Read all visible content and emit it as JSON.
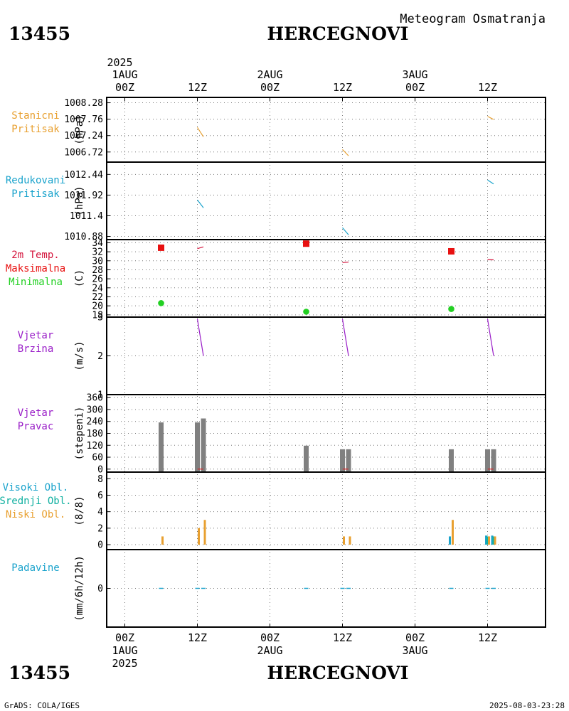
{
  "header": {
    "subtitle": "Meteogram Osmatranja",
    "station_id": "13455",
    "station_name": "HERCEGNOVI"
  },
  "footer": {
    "credit": "GrADS: COLA/IGES",
    "timestamp": "2025-08-03-23:28"
  },
  "time_axis": {
    "year": "2025",
    "top_ticks": [
      {
        "t": 0,
        "line1": "1AUG",
        "line2": "00Z",
        "year": "2025"
      },
      {
        "t": 12,
        "line1": "",
        "line2": "12Z"
      },
      {
        "t": 24,
        "line1": "2AUG",
        "line2": "00Z"
      },
      {
        "t": 36,
        "line1": "",
        "line2": "12Z"
      },
      {
        "t": 48,
        "line1": "3AUG",
        "line2": "00Z"
      },
      {
        "t": 60,
        "line1": "",
        "line2": "12Z"
      }
    ],
    "bottom_ticks": [
      {
        "t": 0,
        "line1": "00Z",
        "line2": "1AUG",
        "year": "2025"
      },
      {
        "t": 12,
        "line1": "12Z",
        "line2": ""
      },
      {
        "t": 24,
        "line1": "00Z",
        "line2": "2AUG"
      },
      {
        "t": 36,
        "line1": "12Z",
        "line2": ""
      },
      {
        "t": 48,
        "line1": "00Z",
        "line2": "3AUG"
      },
      {
        "t": 60,
        "line1": "12Z",
        "line2": ""
      }
    ]
  },
  "colors": {
    "orange": "#e8a030",
    "blue": "#1aa3cc",
    "red": "#e81010",
    "crimson": "#d4143c",
    "green": "#22d022",
    "purple": "#9a1ec8",
    "teal": "#10b0a0",
    "gray": "#808080"
  },
  "chart_data": [
    {
      "id": "station_pressure",
      "type": "line",
      "labels": [
        "Stanicni",
        "Pritisak"
      ],
      "label_colors": [
        "orange",
        "orange"
      ],
      "ylabel": "(hPa)",
      "yticks": [
        "1008.28",
        "1007.76",
        "1007.24",
        "1006.72"
      ],
      "ylim": [
        1006.4,
        1008.45
      ],
      "series": [
        {
          "name": "Stanicni Pritisak",
          "color": "orange",
          "segments": [
            [
              [
                12,
                1007.5
              ],
              [
                13,
                1007.2
              ]
            ],
            [
              [
                36,
                1006.8
              ],
              [
                37,
                1006.6
              ]
            ],
            [
              [
                60,
                1007.85
              ],
              [
                61,
                1007.75
              ]
            ]
          ]
        }
      ]
    },
    {
      "id": "reduced_pressure",
      "type": "line",
      "labels": [
        "Redukovani",
        "Pritisak"
      ],
      "label_colors": [
        "blue",
        "blue"
      ],
      "ylabel": "(hPa)",
      "yticks": [
        "1012.44",
        "1011.92",
        "1011.4",
        "1010.88"
      ],
      "ylim": [
        1010.8,
        1012.75
      ],
      "series": [
        {
          "name": "Redukovani Pritisak",
          "color": "blue",
          "segments": [
            [
              [
                12,
                1011.8
              ],
              [
                13,
                1011.6
              ]
            ],
            [
              [
                36,
                1011.1
              ],
              [
                37,
                1010.92
              ]
            ],
            [
              [
                60,
                1012.3
              ],
              [
                61,
                1012.2
              ]
            ]
          ]
        }
      ]
    },
    {
      "id": "temperature",
      "type": "line",
      "labels": [
        "2m Temp.",
        "Maksimalna",
        "Minimalna"
      ],
      "label_colors": [
        "crimson",
        "red",
        "green"
      ],
      "ylabel": "(C)",
      "yticks": [
        "34",
        "32",
        "30",
        "28",
        "26",
        "24",
        "22",
        "20",
        "18"
      ],
      "ytick_values": [
        34,
        32,
        30,
        28,
        26,
        24,
        22,
        20,
        18
      ],
      "ylim": [
        17.5,
        34.7
      ],
      "series": [
        {
          "name": "2m Temp.",
          "color": "crimson",
          "segments": [
            [
              [
                12,
                32.7
              ],
              [
                13,
                33.1
              ]
            ],
            [
              [
                36,
                29.6
              ],
              [
                37,
                29.7
              ]
            ],
            [
              [
                60,
                30.3
              ],
              [
                61,
                30.2
              ]
            ]
          ]
        }
      ],
      "markers": [
        {
          "name": "Maksimalna",
          "color": "red",
          "shape": "square",
          "points": [
            [
              6,
              32.9
            ],
            [
              30,
              33.8
            ],
            [
              54,
              32.1
            ]
          ]
        },
        {
          "name": "Minimalna",
          "color": "green",
          "shape": "circle",
          "points": [
            [
              6,
              20.6
            ],
            [
              30,
              18.7
            ],
            [
              54,
              19.3
            ]
          ]
        }
      ]
    },
    {
      "id": "wind_speed",
      "type": "line",
      "labels": [
        "Vjetar",
        "Brzina"
      ],
      "label_colors": [
        "purple",
        "purple"
      ],
      "ylabel": "(m/s)",
      "yticks": [
        "3",
        "2",
        "1"
      ],
      "ytick_values": [
        3,
        2,
        1
      ],
      "ylim": [
        1,
        3
      ],
      "series": [
        {
          "name": "Vjetar Brzina",
          "color": "purple",
          "segments": [
            [
              [
                12,
                2.95
              ],
              [
                13,
                2.0
              ]
            ],
            [
              [
                36,
                2.95
              ],
              [
                37,
                2.0
              ]
            ],
            [
              [
                60,
                2.95
              ],
              [
                61,
                2.0
              ]
            ]
          ]
        }
      ]
    },
    {
      "id": "wind_direction",
      "type": "bar",
      "labels": [
        "Vjetar",
        "Pravac"
      ],
      "label_colors": [
        "purple",
        "purple"
      ],
      "ylabel": "(stepeni)",
      "yticks": [
        "360",
        "300",
        "240",
        "180",
        "120",
        "60",
        "0"
      ],
      "ytick_values": [
        360,
        300,
        240,
        180,
        120,
        60,
        0
      ],
      "ylim": [
        -15,
        375
      ],
      "series": [
        {
          "name": "Vjetar Pravac",
          "color": "gray",
          "points": [
            [
              6,
              235
            ],
            [
              12,
              235
            ],
            [
              13,
              255
            ],
            [
              30,
              118
            ],
            [
              36,
              100
            ],
            [
              37,
              100
            ],
            [
              54,
              100
            ],
            [
              60,
              100
            ],
            [
              61,
              100
            ]
          ]
        }
      ],
      "baseline_marks": [
        12.5,
        36.5,
        60.5
      ]
    },
    {
      "id": "clouds",
      "type": "bar",
      "labels": [
        "Visoki Obl.",
        "Srednji Obl.",
        "Niski Obl."
      ],
      "label_colors": [
        "blue",
        "teal",
        "orange"
      ],
      "ylabel": "(8/8)",
      "yticks": [
        "8",
        "6",
        "4",
        "2",
        "0"
      ],
      "ytick_values": [
        8,
        6,
        4,
        2,
        0
      ],
      "ylim": [
        -0.6,
        8.8
      ],
      "series": [
        {
          "name": "Visoki Obl.",
          "color": "blue",
          "points": [
            [
              54,
              1
            ],
            [
              60,
              1.1
            ],
            [
              61,
              1.1
            ]
          ]
        },
        {
          "name": "Srednji Obl.",
          "color": "teal",
          "points": [
            [
              60,
              1
            ],
            [
              61,
              1
            ]
          ]
        },
        {
          "name": "Niski Obl.",
          "color": "orange",
          "points": [
            [
              6,
              1
            ],
            [
              12,
              2
            ],
            [
              13,
              3
            ],
            [
              36,
              1
            ],
            [
              37,
              1
            ],
            [
              54,
              3
            ],
            [
              60,
              1
            ],
            [
              61,
              1
            ]
          ]
        }
      ]
    },
    {
      "id": "precipitation",
      "type": "bar",
      "labels": [
        "Padavine"
      ],
      "label_colors": [
        "blue"
      ],
      "ylabel": "(mm/6h/12h)",
      "yticks": [
        "0"
      ],
      "ytick_values": [
        0
      ],
      "ylim": [
        -5,
        5
      ],
      "series": [
        {
          "name": "Padavine",
          "color": "blue",
          "points": [
            [
              6,
              0
            ],
            [
              12,
              0
            ],
            [
              13,
              0
            ],
            [
              30,
              0
            ],
            [
              36,
              0
            ],
            [
              37,
              0
            ],
            [
              54,
              0
            ],
            [
              60,
              0
            ],
            [
              61,
              0
            ]
          ]
        }
      ]
    }
  ]
}
